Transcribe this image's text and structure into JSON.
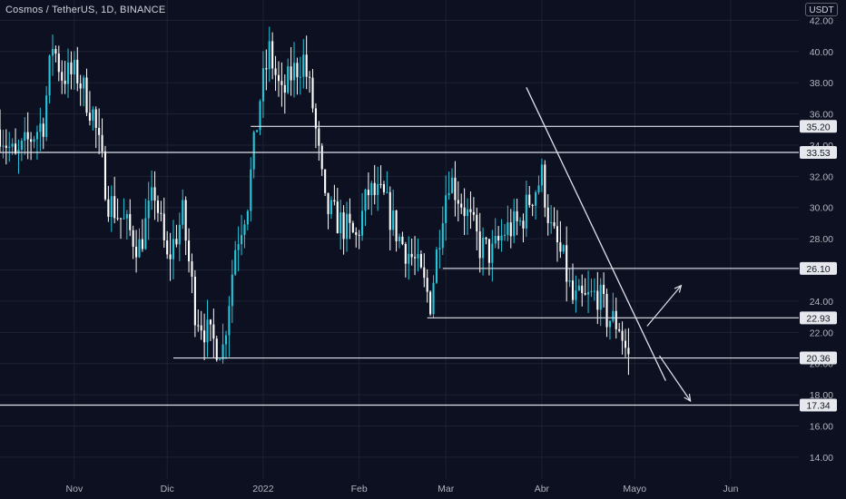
{
  "header": {
    "symbol_title": "Cosmos / TetherUS, 1D, BINANCE",
    "unit_label": "USDT"
  },
  "chart_data": {
    "type": "candlestick",
    "title": "Cosmos / TetherUS, 1D, BINANCE",
    "y_unit": "USDT",
    "ylim": [
      12.6,
      43.3
    ],
    "yticks": [
      14,
      16,
      18,
      20,
      22,
      24,
      26,
      28,
      30,
      32,
      34,
      36,
      38,
      40,
      42
    ],
    "ytick_labels": [
      "14.00",
      "16.00",
      "18.00",
      "20.00",
      "22.00",
      "24.00",
      "26.00",
      "28.00",
      "30.00",
      "32.00",
      "34.00",
      "36.00",
      "38.00",
      "40.00",
      "42.00"
    ],
    "xlim": [
      "2021-10-08",
      "2022-06-23"
    ],
    "xticks": [
      {
        "date": "2021-11-01",
        "label": "Nov"
      },
      {
        "date": "2021-12-01",
        "label": "Dic"
      },
      {
        "date": "2022-01-01",
        "label": "2022"
      },
      {
        "date": "2022-02-01",
        "label": "Feb"
      },
      {
        "date": "2022-03-01",
        "label": "Mar"
      },
      {
        "date": "2022-04-01",
        "label": "Abr"
      },
      {
        "date": "2022-05-01",
        "label": "Mayo"
      },
      {
        "date": "2022-06-01",
        "label": "Jun"
      }
    ],
    "grid": true,
    "colors": {
      "up": "#26c6da",
      "down": "#ffffff",
      "background": "#0c1020",
      "grid": "#1c2333",
      "line": "#e0e3eb"
    },
    "price_levels": [
      {
        "value": 35.2,
        "label": "35.20",
        "from": "2021-12-28"
      },
      {
        "value": 33.53,
        "label": "33.53",
        "from": "2021-10-08"
      },
      {
        "value": 26.1,
        "label": "26.10",
        "from": "2022-02-28"
      },
      {
        "value": 22.93,
        "label": "22.93",
        "from": "2022-02-23"
      },
      {
        "value": 20.36,
        "label": "20.36",
        "from": "2021-12-03"
      },
      {
        "value": 17.34,
        "label": "17.34",
        "from": "2021-10-08"
      }
    ],
    "trendline": {
      "from": {
        "date": "2022-03-27",
        "value": 37.7
      },
      "to": {
        "date": "2022-05-11",
        "value": 18.9
      }
    },
    "arrows": [
      {
        "from": {
          "date": "2022-05-05",
          "value": 22.4
        },
        "to": {
          "date": "2022-05-16",
          "value": 25.0
        }
      },
      {
        "from": {
          "date": "2022-05-09",
          "value": 20.5
        },
        "to": {
          "date": "2022-05-19",
          "value": 17.6
        }
      }
    ],
    "waypoints": [
      [
        "2021-10-08",
        35.0
      ],
      [
        "2021-10-13",
        33.0
      ],
      [
        "2021-10-18",
        34.5
      ],
      [
        "2021-10-22",
        35.5
      ],
      [
        "2021-10-25",
        40.5
      ],
      [
        "2021-10-28",
        38.5
      ],
      [
        "2021-11-02",
        38.5
      ],
      [
        "2021-11-07",
        36.0
      ],
      [
        "2021-11-12",
        30.5
      ],
      [
        "2021-11-17",
        29.0
      ],
      [
        "2021-11-22",
        27.5
      ],
      [
        "2021-11-27",
        31.0
      ],
      [
        "2021-12-01",
        26.5
      ],
      [
        "2021-12-06",
        29.5
      ],
      [
        "2021-12-10",
        23.5
      ],
      [
        "2021-12-15",
        21.5
      ],
      [
        "2021-12-19",
        21.0
      ],
      [
        "2021-12-23",
        27.5
      ],
      [
        "2021-12-27",
        30.5
      ],
      [
        "2021-12-31",
        37.0
      ],
      [
        "2022-01-03",
        40.0
      ],
      [
        "2022-01-07",
        37.0
      ],
      [
        "2022-01-10",
        38.5
      ],
      [
        "2022-01-14",
        39.5
      ],
      [
        "2022-01-17",
        36.5
      ],
      [
        "2022-01-21",
        30.0
      ],
      [
        "2022-01-26",
        29.0
      ],
      [
        "2022-01-31",
        28.0
      ],
      [
        "2022-02-04",
        31.0
      ],
      [
        "2022-02-09",
        30.5
      ],
      [
        "2022-02-14",
        28.0
      ],
      [
        "2022-02-19",
        26.5
      ],
      [
        "2022-02-24",
        24.0
      ],
      [
        "2022-02-28",
        30.0
      ],
      [
        "2022-03-02",
        32.0
      ],
      [
        "2022-03-07",
        30.0
      ],
      [
        "2022-03-12",
        27.5
      ],
      [
        "2022-03-16",
        27.0
      ],
      [
        "2022-03-20",
        28.5
      ],
      [
        "2022-03-25",
        29.0
      ],
      [
        "2022-03-28",
        30.5
      ],
      [
        "2022-04-01",
        32.0
      ],
      [
        "2022-04-04",
        28.5
      ],
      [
        "2022-04-08",
        26.5
      ],
      [
        "2022-04-11",
        24.0
      ],
      [
        "2022-04-15",
        24.0
      ],
      [
        "2022-04-19",
        24.5
      ],
      [
        "2022-04-22",
        23.0
      ],
      [
        "2022-04-26",
        22.5
      ],
      [
        "2022-04-28",
        21.0
      ],
      [
        "2022-04-29",
        20.6
      ]
    ]
  }
}
